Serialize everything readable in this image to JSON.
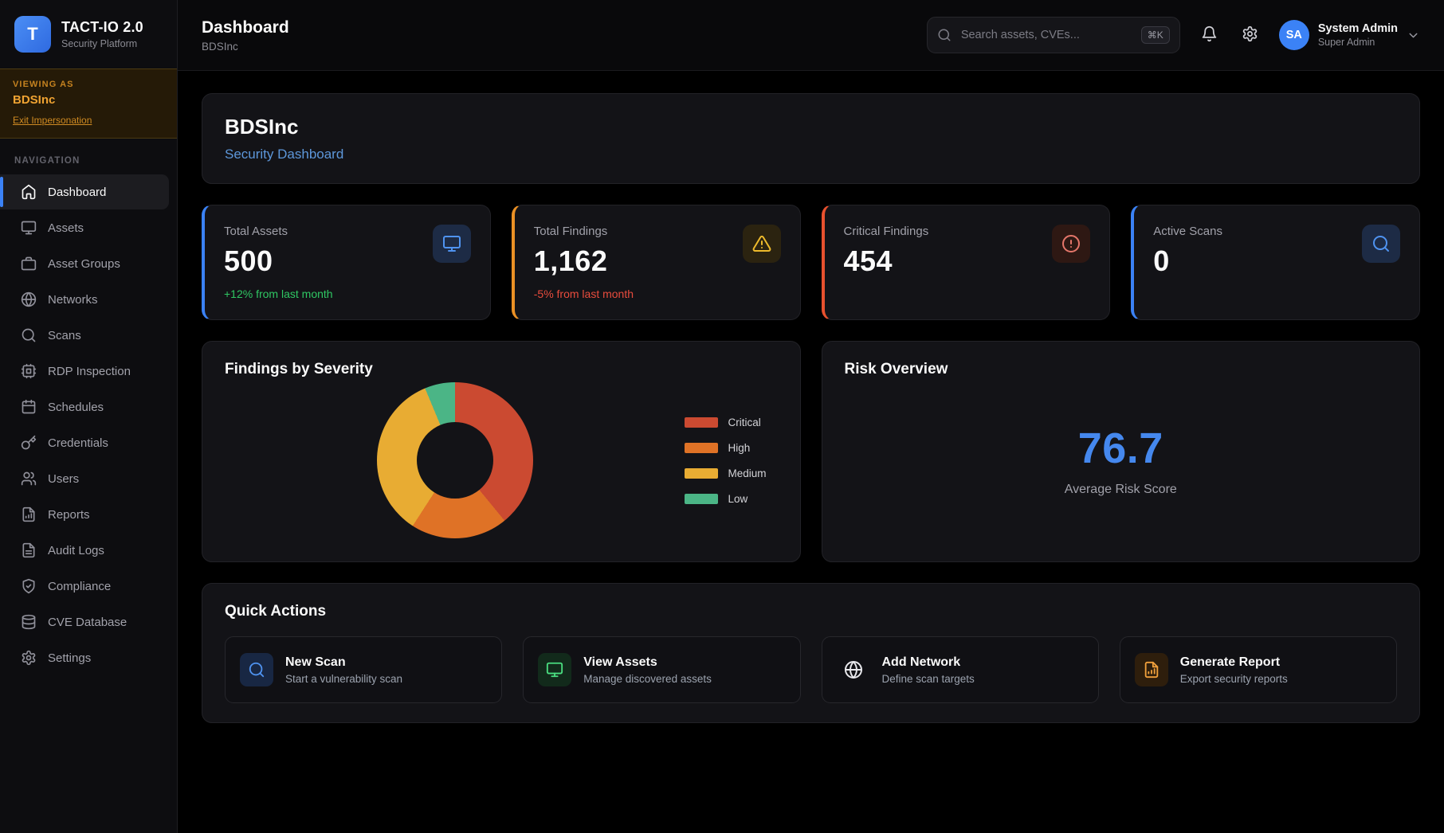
{
  "app": {
    "name": "TACT-IO 2.0",
    "tagline": "Security Platform",
    "logo_letter": "T",
    "accent_color": "#3b82f6"
  },
  "impersonation": {
    "label": "VIEWING AS",
    "org": "BDSInc",
    "exit_label": "Exit Impersonation"
  },
  "sidebar": {
    "section_label": "NAVIGATION",
    "items": [
      {
        "label": "Dashboard",
        "icon": "home",
        "active": true
      },
      {
        "label": "Assets",
        "icon": "monitor",
        "active": false
      },
      {
        "label": "Asset Groups",
        "icon": "briefcase",
        "active": false
      },
      {
        "label": "Networks",
        "icon": "globe",
        "active": false
      },
      {
        "label": "Scans",
        "icon": "search",
        "active": false
      },
      {
        "label": "RDP Inspection",
        "icon": "cpu",
        "active": false
      },
      {
        "label": "Schedules",
        "icon": "calendar",
        "active": false
      },
      {
        "label": "Credentials",
        "icon": "key",
        "active": false
      },
      {
        "label": "Users",
        "icon": "users",
        "active": false
      },
      {
        "label": "Reports",
        "icon": "file-chart",
        "active": false
      },
      {
        "label": "Audit Logs",
        "icon": "file-text",
        "active": false
      },
      {
        "label": "Compliance",
        "icon": "shield-check",
        "active": false
      },
      {
        "label": "CVE Database",
        "icon": "database",
        "active": false
      },
      {
        "label": "Settings",
        "icon": "settings",
        "active": false
      }
    ]
  },
  "header": {
    "title": "Dashboard",
    "subtitle": "BDSInc",
    "search": {
      "icon": "search",
      "placeholder": "Search assets, CVEs...",
      "shortcut": "⌘K"
    },
    "bell_icon": "bell",
    "settings_icon": "settings",
    "user": {
      "initials": "SA",
      "name": "System Admin",
      "role": "Super Admin",
      "chevron_icon": "chevron-down"
    }
  },
  "overview": {
    "org_name": "BDSInc",
    "subtitle": "Security Dashboard",
    "subtitle_color": "#5d97da"
  },
  "stats": [
    {
      "label": "Total Assets",
      "value": "500",
      "delta": "+12% from last month",
      "delta_color": "#2fc763",
      "accent": "#3b82f6",
      "icon": "monitor",
      "icon_color": "#4f93f0",
      "icon_bg": "#1d2b45"
    },
    {
      "label": "Total Findings",
      "value": "1,162",
      "delta": "-5% from last month",
      "delta_color": "#e84c3d",
      "accent": "#eb9125",
      "icon": "alert-triangle",
      "icon_color": "#edba2c",
      "icon_bg": "#2b2310"
    },
    {
      "label": "Critical Findings",
      "value": "454",
      "delta": "",
      "delta_color": "",
      "accent": "#e9512e",
      "icon": "alert-circle",
      "icon_color": "#e5766a",
      "icon_bg": "#2e1813"
    },
    {
      "label": "Active Scans",
      "value": "0",
      "delta": "",
      "delta_color": "",
      "accent": "#3b82f6",
      "icon": "search",
      "icon_color": "#4f93f0",
      "icon_bg": "#1d2b45"
    }
  ],
  "severity_panel": {
    "title": "Findings by Severity"
  },
  "chart_data": {
    "type": "pie",
    "subtype": "donut",
    "title": "Findings by Severity",
    "categories": [
      "Critical",
      "High",
      "Medium",
      "Low"
    ],
    "values": [
      454,
      233,
      402,
      73
    ],
    "colors": [
      "#cb4a31",
      "#df7226",
      "#e8ac33",
      "#4bb586"
    ],
    "total": 1162,
    "legend_position": "right",
    "hole_ratio": 0.5
  },
  "risk_panel": {
    "title": "Risk Overview",
    "score": "76.7",
    "score_color": "#4588ee",
    "caption": "Average Risk Score"
  },
  "quick_actions": {
    "title": "Quick Actions",
    "items": [
      {
        "title": "New Scan",
        "subtitle": "Start a vulnerability scan",
        "icon": "search",
        "icon_color": "#4f93f0",
        "icon_bg": "#182743"
      },
      {
        "title": "View Assets",
        "subtitle": "Manage discovered assets",
        "icon": "monitor",
        "icon_color": "#4ade80",
        "icon_bg": "#122a1b"
      },
      {
        "title": "Add Network",
        "subtitle": "Define scan targets",
        "icon": "globe",
        "icon_color": "#e8e8ec",
        "icon_bg": "transparent"
      },
      {
        "title": "Generate Report",
        "subtitle": "Export security reports",
        "icon": "file-chart",
        "icon_color": "#f0a03c",
        "icon_bg": "#2e1e0c"
      }
    ]
  }
}
